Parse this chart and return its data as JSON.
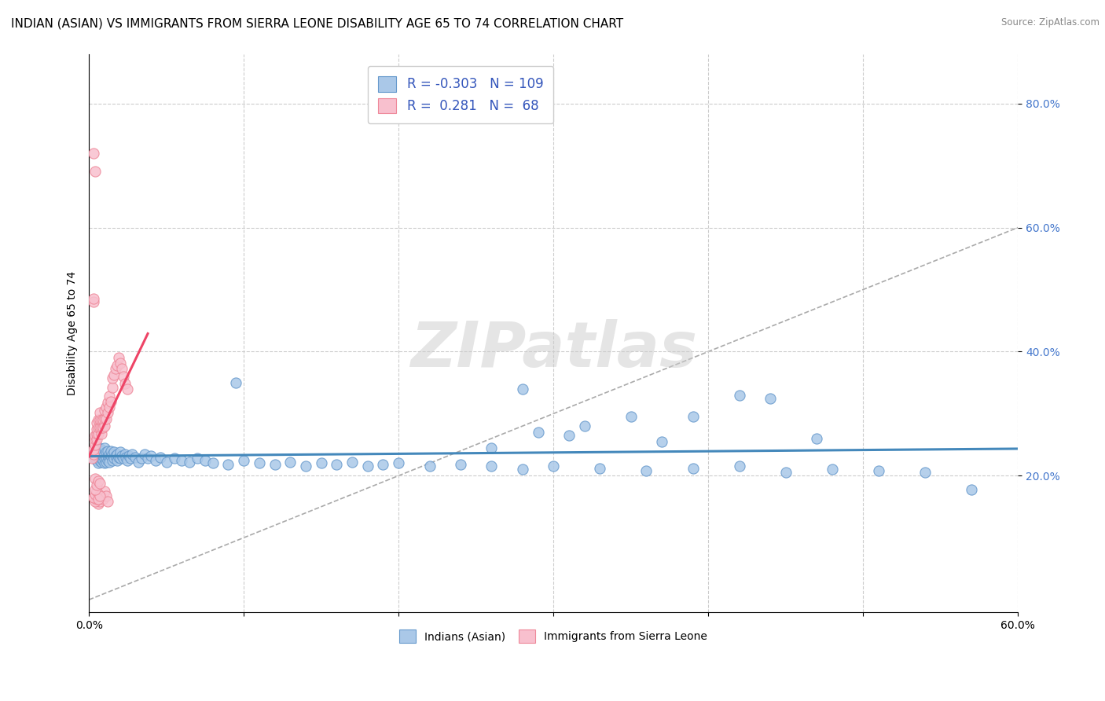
{
  "title": "INDIAN (ASIAN) VS IMMIGRANTS FROM SIERRA LEONE DISABILITY AGE 65 TO 74 CORRELATION CHART",
  "source": "Source: ZipAtlas.com",
  "ylabel": "Disability Age 65 to 74",
  "xlim": [
    0.0,
    0.6
  ],
  "ylim": [
    -0.02,
    0.88
  ],
  "xticks": [
    0.0,
    0.1,
    0.2,
    0.3,
    0.4,
    0.5,
    0.6
  ],
  "xticklabels": [
    "0.0%",
    "",
    "",
    "",
    "",
    "",
    "60.0%"
  ],
  "yticks": [
    0.2,
    0.4,
    0.6,
    0.8
  ],
  "yticklabels": [
    "20.0%",
    "40.0%",
    "60.0%",
    "80.0%"
  ],
  "series1_name": "Indians (Asian)",
  "series1_color": "#aac8e8",
  "series1_edge": "#6699cc",
  "series1_line_color": "#4488bb",
  "series1_R": -0.303,
  "series1_N": 109,
  "series2_name": "Immigrants from Sierra Leone",
  "series2_color": "#f8c0ce",
  "series2_edge": "#ee8899",
  "series2_line_color": "#ee4466",
  "series2_R": 0.281,
  "series2_N": 68,
  "watermark_text": "ZIPatlas",
  "background_color": "#ffffff",
  "grid_color": "#cccccc",
  "title_fontsize": 11,
  "axis_fontsize": 10,
  "tick_fontsize": 10,
  "legend_fontsize": 12,
  "blue_points_x": [
    0.002,
    0.003,
    0.004,
    0.004,
    0.005,
    0.005,
    0.005,
    0.005,
    0.006,
    0.006,
    0.006,
    0.006,
    0.007,
    0.007,
    0.007,
    0.007,
    0.008,
    0.008,
    0.008,
    0.008,
    0.009,
    0.009,
    0.009,
    0.01,
    0.01,
    0.01,
    0.01,
    0.011,
    0.011,
    0.011,
    0.012,
    0.012,
    0.012,
    0.013,
    0.013,
    0.013,
    0.014,
    0.014,
    0.015,
    0.015,
    0.016,
    0.016,
    0.017,
    0.018,
    0.018,
    0.019,
    0.02,
    0.02,
    0.021,
    0.022,
    0.023,
    0.024,
    0.025,
    0.026,
    0.027,
    0.028,
    0.03,
    0.032,
    0.034,
    0.036,
    0.038,
    0.04,
    0.043,
    0.046,
    0.05,
    0.055,
    0.06,
    0.065,
    0.07,
    0.075,
    0.08,
    0.09,
    0.1,
    0.11,
    0.12,
    0.13,
    0.14,
    0.15,
    0.16,
    0.17,
    0.18,
    0.19,
    0.2,
    0.22,
    0.24,
    0.26,
    0.28,
    0.3,
    0.33,
    0.36,
    0.39,
    0.42,
    0.45,
    0.48,
    0.51,
    0.54,
    0.57,
    0.095,
    0.28,
    0.35,
    0.42,
    0.29,
    0.31,
    0.47,
    0.39,
    0.44,
    0.32,
    0.26,
    0.37
  ],
  "blue_points_y": [
    0.23,
    0.235,
    0.228,
    0.24,
    0.225,
    0.232,
    0.238,
    0.245,
    0.22,
    0.228,
    0.235,
    0.242,
    0.225,
    0.23,
    0.238,
    0.245,
    0.222,
    0.228,
    0.235,
    0.242,
    0.225,
    0.232,
    0.24,
    0.22,
    0.228,
    0.235,
    0.245,
    0.222,
    0.23,
    0.238,
    0.225,
    0.232,
    0.24,
    0.228,
    0.235,
    0.222,
    0.232,
    0.24,
    0.225,
    0.235,
    0.228,
    0.238,
    0.232,
    0.225,
    0.235,
    0.23,
    0.228,
    0.238,
    0.232,
    0.228,
    0.235,
    0.23,
    0.225,
    0.232,
    0.228,
    0.235,
    0.23,
    0.222,
    0.228,
    0.235,
    0.228,
    0.232,
    0.225,
    0.23,
    0.222,
    0.228,
    0.225,
    0.222,
    0.228,
    0.225,
    0.22,
    0.218,
    0.225,
    0.22,
    0.218,
    0.222,
    0.215,
    0.22,
    0.218,
    0.222,
    0.215,
    0.218,
    0.22,
    0.215,
    0.218,
    0.215,
    0.21,
    0.215,
    0.212,
    0.208,
    0.212,
    0.215,
    0.205,
    0.21,
    0.208,
    0.205,
    0.178,
    0.35,
    0.34,
    0.295,
    0.33,
    0.27,
    0.265,
    0.26,
    0.295,
    0.325,
    0.28,
    0.245,
    0.255
  ],
  "pink_points_x": [
    0.002,
    0.003,
    0.003,
    0.004,
    0.004,
    0.004,
    0.005,
    0.005,
    0.005,
    0.005,
    0.006,
    0.006,
    0.006,
    0.007,
    0.007,
    0.007,
    0.008,
    0.008,
    0.008,
    0.009,
    0.009,
    0.01,
    0.01,
    0.01,
    0.011,
    0.011,
    0.012,
    0.012,
    0.013,
    0.013,
    0.014,
    0.015,
    0.015,
    0.016,
    0.017,
    0.018,
    0.019,
    0.02,
    0.021,
    0.022,
    0.023,
    0.025,
    0.003,
    0.003,
    0.004,
    0.004,
    0.005,
    0.005,
    0.006,
    0.006,
    0.007,
    0.008,
    0.009,
    0.01,
    0.011,
    0.012,
    0.003,
    0.004,
    0.005,
    0.003,
    0.004,
    0.005,
    0.006,
    0.007,
    0.004,
    0.005,
    0.006,
    0.007
  ],
  "pink_points_y": [
    0.228,
    0.235,
    0.242,
    0.25,
    0.258,
    0.265,
    0.258,
    0.268,
    0.275,
    0.285,
    0.268,
    0.278,
    0.29,
    0.278,
    0.29,
    0.302,
    0.268,
    0.278,
    0.29,
    0.278,
    0.29,
    0.28,
    0.292,
    0.305,
    0.292,
    0.31,
    0.302,
    0.318,
    0.31,
    0.328,
    0.32,
    0.342,
    0.358,
    0.362,
    0.372,
    0.378,
    0.39,
    0.382,
    0.372,
    0.36,
    0.348,
    0.34,
    0.72,
    0.48,
    0.69,
    0.195,
    0.158,
    0.165,
    0.155,
    0.162,
    0.158,
    0.168,
    0.162,
    0.175,
    0.168,
    0.158,
    0.485,
    0.158,
    0.162,
    0.165,
    0.17,
    0.175,
    0.162,
    0.168,
    0.178,
    0.185,
    0.192,
    0.188
  ]
}
